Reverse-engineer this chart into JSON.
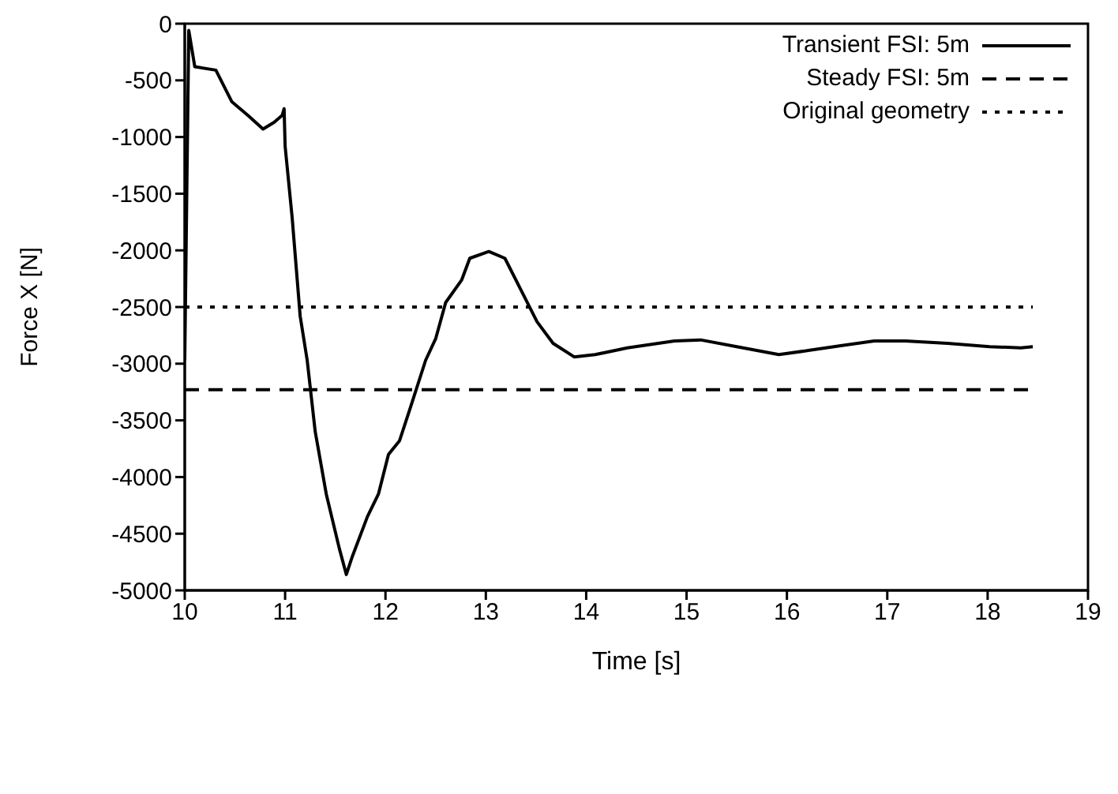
{
  "chart_data": {
    "type": "line",
    "xlabel": "Time [s]",
    "ylabel": "Force X [N]",
    "xlim": [
      10,
      19
    ],
    "xticks": [
      10,
      11,
      12,
      13,
      14,
      15,
      16,
      17,
      18,
      19
    ],
    "ylim": [
      -5000,
      0
    ],
    "yticks": [
      -5000,
      -4500,
      -4000,
      -3500,
      -3000,
      -2500,
      -2000,
      -1500,
      -1000,
      -500,
      0
    ],
    "legend": "top right",
    "marker": "none",
    "series": [
      {
        "name": "Transient FSI: 5m",
        "color": "#000000",
        "line_style": "solid",
        "x": [
          10.0,
          10.04,
          10.1,
          10.31,
          10.47,
          10.63,
          10.78,
          10.89,
          10.97,
          10.99,
          11.0,
          11.07,
          11.15,
          11.22,
          11.3,
          11.41,
          11.54,
          11.61,
          11.67,
          11.82,
          11.93,
          12.03,
          12.14,
          12.24,
          12.4,
          12.5,
          12.6,
          12.76,
          12.84,
          13.03,
          13.19,
          13.35,
          13.51,
          13.67,
          13.88,
          14.09,
          14.41,
          14.88,
          15.14,
          15.5,
          15.92,
          16.24,
          16.55,
          16.87,
          17.18,
          17.6,
          18.02,
          18.33,
          18.45
        ],
        "values": [
          -2970,
          -60,
          -380,
          -410,
          -690,
          -810,
          -930,
          -870,
          -810,
          -750,
          -1080,
          -1710,
          -2580,
          -2970,
          -3600,
          -4150,
          -4630,
          -4860,
          -4700,
          -4350,
          -4150,
          -3800,
          -3680,
          -3410,
          -2970,
          -2780,
          -2460,
          -2260,
          -2070,
          -2010,
          -2070,
          -2350,
          -2630,
          -2820,
          -2940,
          -2920,
          -2860,
          -2800,
          -2790,
          -2850,
          -2920,
          -2880,
          -2840,
          -2800,
          -2800,
          -2820,
          -2850,
          -2860,
          -2850
        ]
      },
      {
        "name": "Steady FSI: 5m",
        "color": "#000000",
        "line_style": "dashed",
        "x": [
          10,
          18.45
        ],
        "values": [
          -3230,
          -3230
        ]
      },
      {
        "name": "Original geometry",
        "color": "#000000",
        "line_style": "dotted",
        "x": [
          10,
          18.45
        ],
        "values": [
          -2500,
          -2500
        ]
      }
    ]
  }
}
